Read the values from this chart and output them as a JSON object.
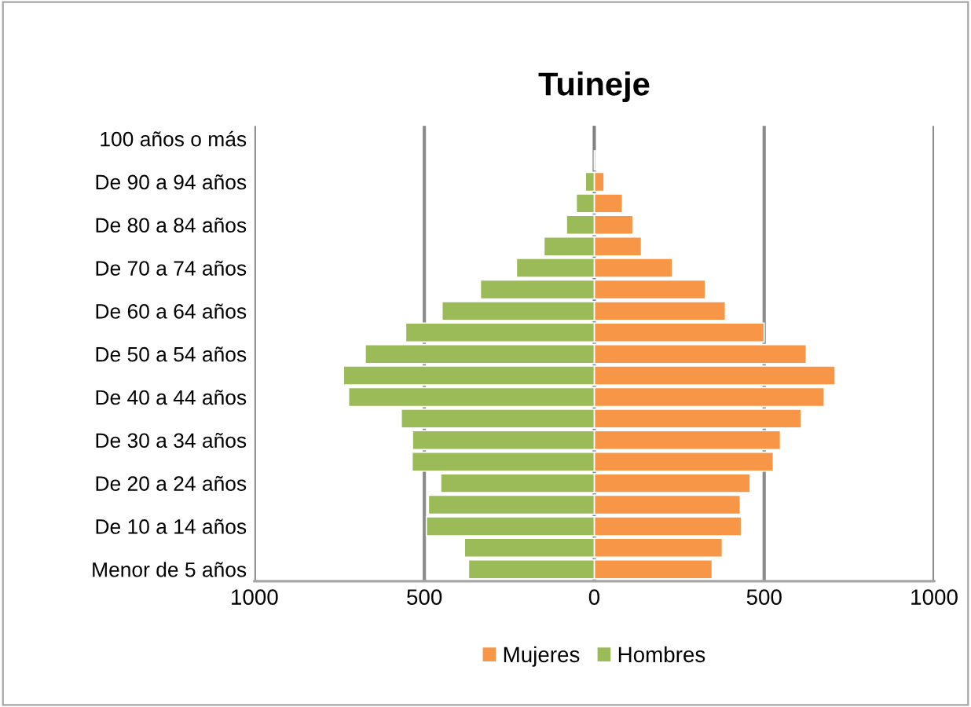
{
  "chart_data": {
    "type": "bar",
    "orientation": "horizontal",
    "stacked": true,
    "title": "Tuineje",
    "categories": [
      "100 años o más",
      null,
      "De 90 a 94 años",
      null,
      "De 80 a 84 años",
      null,
      "De 70 a 74 años",
      null,
      "De 60 a 64 años",
      null,
      "De 50 a 54 años",
      null,
      "De 40 a 44 años",
      null,
      "De 30 a 34 años",
      null,
      "De 20 a 24 años",
      null,
      "De 10 a 14 años",
      null,
      "Menor de 5 años"
    ],
    "series": [
      {
        "name": "Mujeres",
        "color": "#f79646",
        "values": [
          null,
          5,
          29,
          83,
          114,
          139,
          230,
          327,
          386,
          500,
          624,
          709,
          677,
          609,
          548,
          527,
          459,
          430,
          433,
          377,
          347
        ]
      },
      {
        "name": "Hombres",
        "color": "#9bbb59",
        "values": [
          null,
          null,
          -26,
          -53,
          -82,
          -148,
          -229,
          -335,
          -448,
          -555,
          -674,
          -738,
          -723,
          -568,
          -535,
          -536,
          -452,
          -488,
          -494,
          -382,
          -370
        ]
      }
    ],
    "xlim": [
      -1000,
      1000
    ],
    "xticks": [
      {
        "value": -1000,
        "label": "1000"
      },
      {
        "value": -500,
        "label": "500"
      },
      0,
      500,
      1000
    ],
    "grid": "x",
    "legend": "bottom"
  }
}
